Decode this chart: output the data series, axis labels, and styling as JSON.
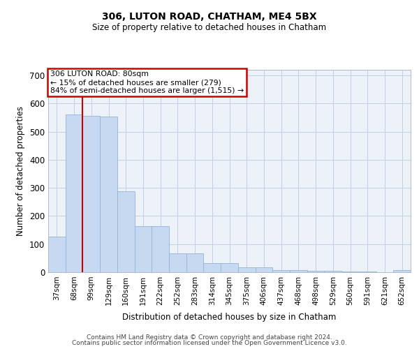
{
  "title1": "306, LUTON ROAD, CHATHAM, ME4 5BX",
  "title2": "Size of property relative to detached houses in Chatham",
  "xlabel": "Distribution of detached houses by size in Chatham",
  "ylabel": "Number of detached properties",
  "categories": [
    "37sqm",
    "68sqm",
    "99sqm",
    "129sqm",
    "160sqm",
    "191sqm",
    "222sqm",
    "252sqm",
    "283sqm",
    "314sqm",
    "345sqm",
    "375sqm",
    "406sqm",
    "437sqm",
    "468sqm",
    "498sqm",
    "529sqm",
    "560sqm",
    "591sqm",
    "621sqm",
    "652sqm"
  ],
  "values": [
    127,
    560,
    555,
    553,
    287,
    165,
    165,
    68,
    68,
    32,
    32,
    18,
    18,
    8,
    8,
    5,
    5,
    3,
    2,
    1,
    7
  ],
  "bar_color": "#c6d9f1",
  "bar_edge_color": "#8fb4d9",
  "grid_color": "#c0cfe8",
  "bg_color": "#edf1f8",
  "annotation_text_line1": "306 LUTON ROAD: 80sqm",
  "annotation_text_line2": "← 15% of detached houses are smaller (279)",
  "annotation_text_line3": "84% of semi-detached houses are larger (1,515) →",
  "annotation_box_color": "#cc0000",
  "vline_x": 1.5,
  "vline_color": "#cc0000",
  "ylim": [
    0,
    720
  ],
  "yticks": [
    0,
    100,
    200,
    300,
    400,
    500,
    600,
    700
  ],
  "footer1": "Contains HM Land Registry data © Crown copyright and database right 2024.",
  "footer2": "Contains public sector information licensed under the Open Government Licence v3.0."
}
